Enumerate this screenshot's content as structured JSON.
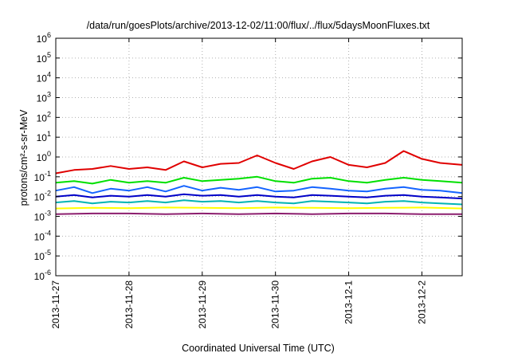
{
  "chart_data": {
    "type": "line",
    "title": "/data/run/goesPlots/archive/2013-12-02/11:00/flux/../flux/5daysMoonFluxes.txt",
    "xlabel": "Coordinated Universal Time (UTC)",
    "ylabel": "protons/cm²-s-sr-MeV",
    "yscale": "log",
    "ylim": [
      1e-06,
      1000000
    ],
    "xlim": [
      0,
      5.55
    ],
    "grid": true,
    "x_ticks": [
      {
        "pos": 0,
        "label": "2013-11-27"
      },
      {
        "pos": 1,
        "label": "2013-11-28"
      },
      {
        "pos": 2,
        "label": "2013-11-29"
      },
      {
        "pos": 3,
        "label": "2013-11-30"
      },
      {
        "pos": 4,
        "label": "2013-12-1"
      },
      {
        "pos": 5,
        "label": "2013-12-2"
      }
    ],
    "y_ticks": [
      {
        "value": 1e-06,
        "base": "10",
        "exp": "-6"
      },
      {
        "value": 1e-05,
        "base": "10",
        "exp": "-5"
      },
      {
        "value": 0.0001,
        "base": "10",
        "exp": "-4"
      },
      {
        "value": 0.001,
        "base": "10",
        "exp": "-3"
      },
      {
        "value": 0.01,
        "base": "10",
        "exp": "-2"
      },
      {
        "value": 0.1,
        "base": "10",
        "exp": "-1"
      },
      {
        "value": 1,
        "base": "10",
        "exp": "0"
      },
      {
        "value": 10,
        "base": "10",
        "exp": "1"
      },
      {
        "value": 100,
        "base": "10",
        "exp": "2"
      },
      {
        "value": 1000,
        "base": "10",
        "exp": "3"
      },
      {
        "value": 10000,
        "base": "10",
        "exp": "4"
      },
      {
        "value": 100000,
        "base": "10",
        "exp": "5"
      },
      {
        "value": 1000000,
        "base": "10",
        "exp": "6"
      }
    ],
    "series": [
      {
        "color": "#e00000",
        "x": [
          0,
          0.25,
          0.5,
          0.75,
          1,
          1.25,
          1.5,
          1.75,
          2,
          2.25,
          2.5,
          2.75,
          3,
          3.25,
          3.5,
          3.75,
          4,
          4.25,
          4.5,
          4.75,
          5,
          5.25,
          5.55
        ],
        "y": [
          0.15,
          0.22,
          0.25,
          0.35,
          0.25,
          0.3,
          0.22,
          0.6,
          0.3,
          0.45,
          0.5,
          1.2,
          0.5,
          0.25,
          0.6,
          1.0,
          0.4,
          0.3,
          0.5,
          2.0,
          0.8,
          0.5,
          0.4
        ]
      },
      {
        "color": "#00e000",
        "x": [
          0,
          0.25,
          0.5,
          0.75,
          1,
          1.25,
          1.5,
          1.75,
          2,
          2.25,
          2.5,
          2.75,
          3,
          3.25,
          3.5,
          3.75,
          4,
          4.25,
          4.5,
          4.75,
          5,
          5.25,
          5.55
        ],
        "y": [
          0.05,
          0.06,
          0.045,
          0.07,
          0.05,
          0.06,
          0.05,
          0.09,
          0.06,
          0.07,
          0.08,
          0.1,
          0.06,
          0.05,
          0.08,
          0.09,
          0.06,
          0.05,
          0.07,
          0.09,
          0.07,
          0.06,
          0.05
        ]
      },
      {
        "color": "#1464ff",
        "x": [
          0,
          0.25,
          0.5,
          0.75,
          1,
          1.25,
          1.5,
          1.75,
          2,
          2.25,
          2.5,
          2.75,
          3,
          3.25,
          3.5,
          3.75,
          4,
          4.25,
          4.5,
          4.75,
          5,
          5.25,
          5.55
        ],
        "y": [
          0.02,
          0.03,
          0.015,
          0.025,
          0.02,
          0.03,
          0.018,
          0.035,
          0.02,
          0.028,
          0.022,
          0.03,
          0.018,
          0.02,
          0.03,
          0.025,
          0.02,
          0.018,
          0.025,
          0.03,
          0.022,
          0.02,
          0.015
        ]
      },
      {
        "color": "#0000c8",
        "x": [
          0,
          0.25,
          0.5,
          0.75,
          1,
          1.25,
          1.5,
          1.75,
          2,
          2.25,
          2.5,
          2.75,
          3,
          3.25,
          3.5,
          3.75,
          4,
          4.25,
          4.5,
          4.75,
          5,
          5.25,
          5.55
        ],
        "y": [
          0.01,
          0.012,
          0.009,
          0.011,
          0.01,
          0.012,
          0.01,
          0.013,
          0.011,
          0.012,
          0.01,
          0.012,
          0.01,
          0.009,
          0.012,
          0.011,
          0.01,
          0.009,
          0.011,
          0.012,
          0.01,
          0.009,
          0.008
        ]
      },
      {
        "color": "#00b4b4",
        "x": [
          0,
          0.25,
          0.5,
          0.75,
          1,
          1.25,
          1.5,
          1.75,
          2,
          2.25,
          2.5,
          2.75,
          3,
          3.25,
          3.5,
          3.75,
          4,
          4.25,
          4.5,
          4.75,
          5,
          5.25,
          5.55
        ],
        "y": [
          0.005,
          0.006,
          0.0045,
          0.0055,
          0.005,
          0.006,
          0.005,
          0.0065,
          0.0055,
          0.006,
          0.005,
          0.006,
          0.005,
          0.0045,
          0.006,
          0.0055,
          0.005,
          0.0045,
          0.0055,
          0.006,
          0.005,
          0.0045,
          0.004
        ]
      },
      {
        "color": "#ffff00",
        "x": [
          0,
          0.5,
          1,
          1.5,
          2,
          2.5,
          3,
          3.5,
          4,
          4.5,
          5,
          5.55
        ],
        "y": [
          0.0025,
          0.0027,
          0.0026,
          0.0028,
          0.0027,
          0.0026,
          0.0028,
          0.0027,
          0.0026,
          0.0027,
          0.0028,
          0.0025
        ]
      },
      {
        "color": "#8c1e6e",
        "x": [
          0,
          0.5,
          1,
          1.5,
          2,
          2.5,
          3,
          3.5,
          4,
          4.5,
          5,
          5.55
        ],
        "y": [
          0.0013,
          0.0014,
          0.0014,
          0.0013,
          0.0014,
          0.0013,
          0.0014,
          0.0013,
          0.0014,
          0.0014,
          0.0013,
          0.0013
        ]
      }
    ]
  }
}
